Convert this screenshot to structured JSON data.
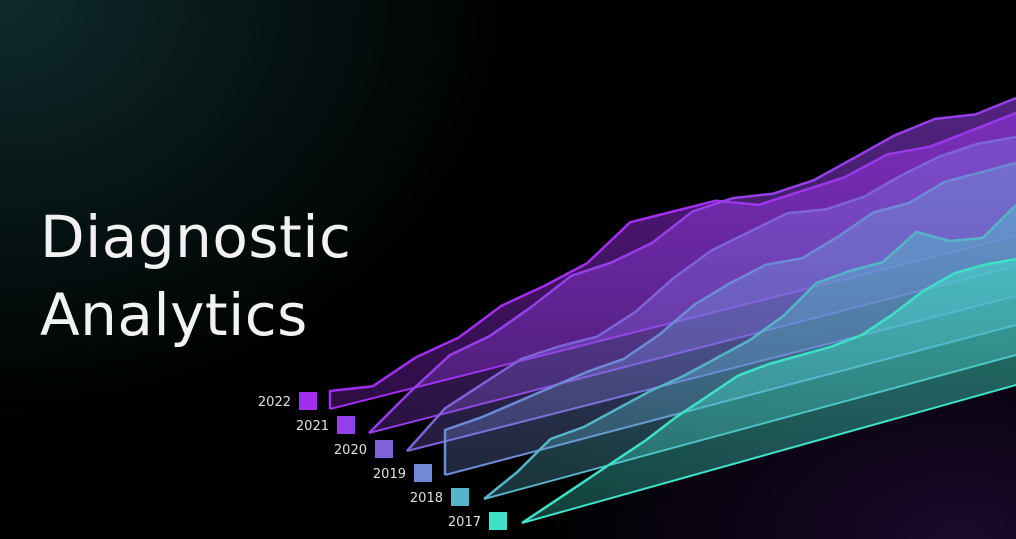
{
  "title": {
    "line1": "Diagnostic",
    "line2": "Analytics"
  },
  "chart_data": {
    "type": "area",
    "title": "",
    "xlabel": "",
    "ylabel": "",
    "grid": false,
    "legend_position": "bottom-left",
    "x": [
      0,
      1,
      2,
      3,
      4,
      5,
      6,
      7,
      8,
      9,
      10,
      11,
      12,
      13,
      14,
      15,
      16
    ],
    "series": [
      {
        "name": "2017",
        "color": "#3fe0c8",
        "values": [
          0,
          8,
          16,
          24,
          32,
          42,
          50,
          58,
          60,
          60,
          60,
          62,
          70,
          80,
          86,
          86,
          84
        ]
      },
      {
        "name": "2018",
        "color": "#56b4c8",
        "values": [
          0,
          12,
          28,
          30,
          36,
          42,
          46,
          52,
          58,
          68,
          84,
          86,
          86,
          100,
          88,
          84,
          100
        ]
      },
      {
        "name": "2019",
        "color": "#6f8ad6",
        "values": [
          30,
          32,
          36,
          40,
          44,
          46,
          56,
          70,
          78,
          84,
          82,
          90,
          100,
          100,
          108,
          108,
          108
        ]
      },
      {
        "name": "2020",
        "color": "#7e64d8",
        "values": [
          0,
          22,
          32,
          42,
          44,
          44,
          54,
          70,
          82,
          88,
          94,
          90,
          92,
          100,
          106,
          108,
          106
        ]
      },
      {
        "name": "2021",
        "color": "#9540e8",
        "values": [
          0,
          20,
          38,
          44,
          56,
          70,
          72,
          78,
          92,
          94,
          90,
          92,
          100,
          108,
          112,
          108,
          112
        ]
      },
      {
        "name": "2022",
        "color": "#a22ff0",
        "values": [
          12,
          8,
          20,
          26,
          40,
          46,
          54,
          74,
          74,
          74,
          64,
          66,
          68,
          76,
          74,
          78,
          82
        ]
      }
    ]
  }
}
